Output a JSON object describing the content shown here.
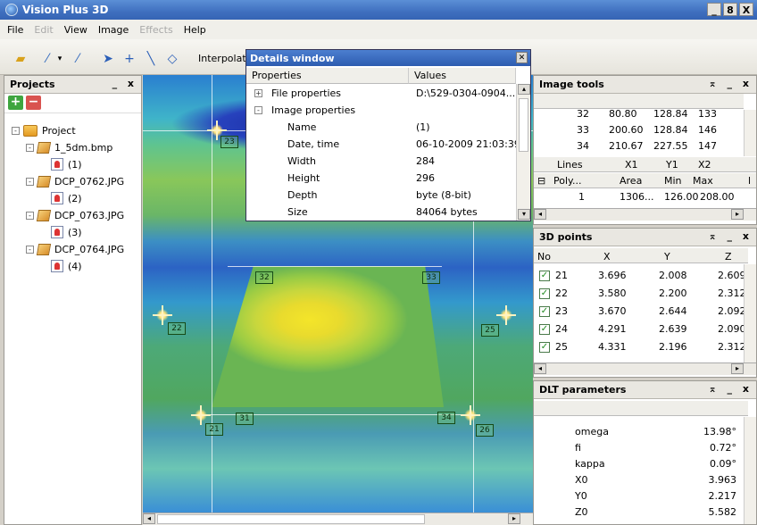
{
  "window": {
    "title": "Vision Plus 3D",
    "controls": [
      "_",
      "8",
      "X"
    ]
  },
  "menu": {
    "items": [
      {
        "label": "File",
        "enabled": true
      },
      {
        "label": "Edit",
        "enabled": false
      },
      {
        "label": "View",
        "enabled": true
      },
      {
        "label": "Image",
        "enabled": true
      },
      {
        "label": "Effects",
        "enabled": false
      },
      {
        "label": "Help",
        "enabled": true
      }
    ]
  },
  "toolbar": {
    "interpolate_label": "Interpolat"
  },
  "projects": {
    "title": "Projects",
    "controls": "_ x",
    "tree": [
      {
        "label": "Project",
        "type": "folder",
        "expand": "-"
      },
      {
        "label": "1_5dm.bmp",
        "type": "file",
        "expand": "-"
      },
      {
        "label": "(1)",
        "type": "image"
      },
      {
        "label": "DCP_0762.JPG",
        "type": "file",
        "expand": "-"
      },
      {
        "label": "(2)",
        "type": "image"
      },
      {
        "label": "DCP_0763.JPG",
        "type": "file",
        "expand": "-"
      },
      {
        "label": "(3)",
        "type": "image"
      },
      {
        "label": "DCP_0764.JPG",
        "type": "file",
        "expand": "-"
      },
      {
        "label": "(4)",
        "type": "image"
      }
    ]
  },
  "image_markers": [
    "23",
    "32",
    "33",
    "22",
    "25",
    "21",
    "31",
    "34",
    "26"
  ],
  "details": {
    "title": "Details window",
    "col_properties": "Properties",
    "col_values": "Values",
    "rows": [
      {
        "key": "File properties",
        "value": "D:\\529-0304-0904...",
        "expand": "+"
      },
      {
        "key": "Image properties",
        "value": "",
        "expand": "-"
      },
      {
        "key": "Name",
        "value": "(1)"
      },
      {
        "key": "Date, time",
        "value": "06-10-2009 21:03:39"
      },
      {
        "key": "Width",
        "value": "284"
      },
      {
        "key": "Height",
        "value": "296"
      },
      {
        "key": "Depth",
        "value": "byte (8-bit)"
      },
      {
        "key": "Size",
        "value": "84064 bytes"
      }
    ]
  },
  "image_tools": {
    "title": "Image tools",
    "controls": "⌅ _ x",
    "rows": [
      [
        "32",
        "80.80",
        "128.84",
        "133"
      ],
      [
        "33",
        "200.60",
        "128.84",
        "146"
      ],
      [
        "34",
        "210.67",
        "227.55",
        "147"
      ]
    ],
    "lines_header": [
      "Lines",
      "X1",
      "Y1",
      "X2"
    ],
    "poly_header": [
      "Poly...",
      "Area",
      "Min",
      "Max",
      "l"
    ],
    "poly_row": [
      "1",
      "1306...",
      "126.00",
      "208.00"
    ]
  },
  "points_3d": {
    "title": "3D points",
    "controls": "⌅ _ x",
    "headers": [
      "No",
      "X",
      "Y",
      "Z"
    ],
    "rows": [
      {
        "no": "21",
        "x": "3.696",
        "y": "2.008",
        "z": "2.609"
      },
      {
        "no": "22",
        "x": "3.580",
        "y": "2.200",
        "z": "2.312"
      },
      {
        "no": "23",
        "x": "3.670",
        "y": "2.644",
        "z": "2.092"
      },
      {
        "no": "24",
        "x": "4.291",
        "y": "2.639",
        "z": "2.090"
      },
      {
        "no": "25",
        "x": "4.331",
        "y": "2.196",
        "z": "2.312"
      }
    ]
  },
  "dlt": {
    "title": "DLT parameters",
    "controls": "⌅ _ x",
    "rows": [
      {
        "key": "omega",
        "value": "13.98°"
      },
      {
        "key": "fi",
        "value": "0.72°"
      },
      {
        "key": "kappa",
        "value": "0.09°"
      },
      {
        "key": "X0",
        "value": "3.963"
      },
      {
        "key": "Y0",
        "value": "2.217"
      },
      {
        "key": "Z0",
        "value": "5.582"
      }
    ]
  }
}
